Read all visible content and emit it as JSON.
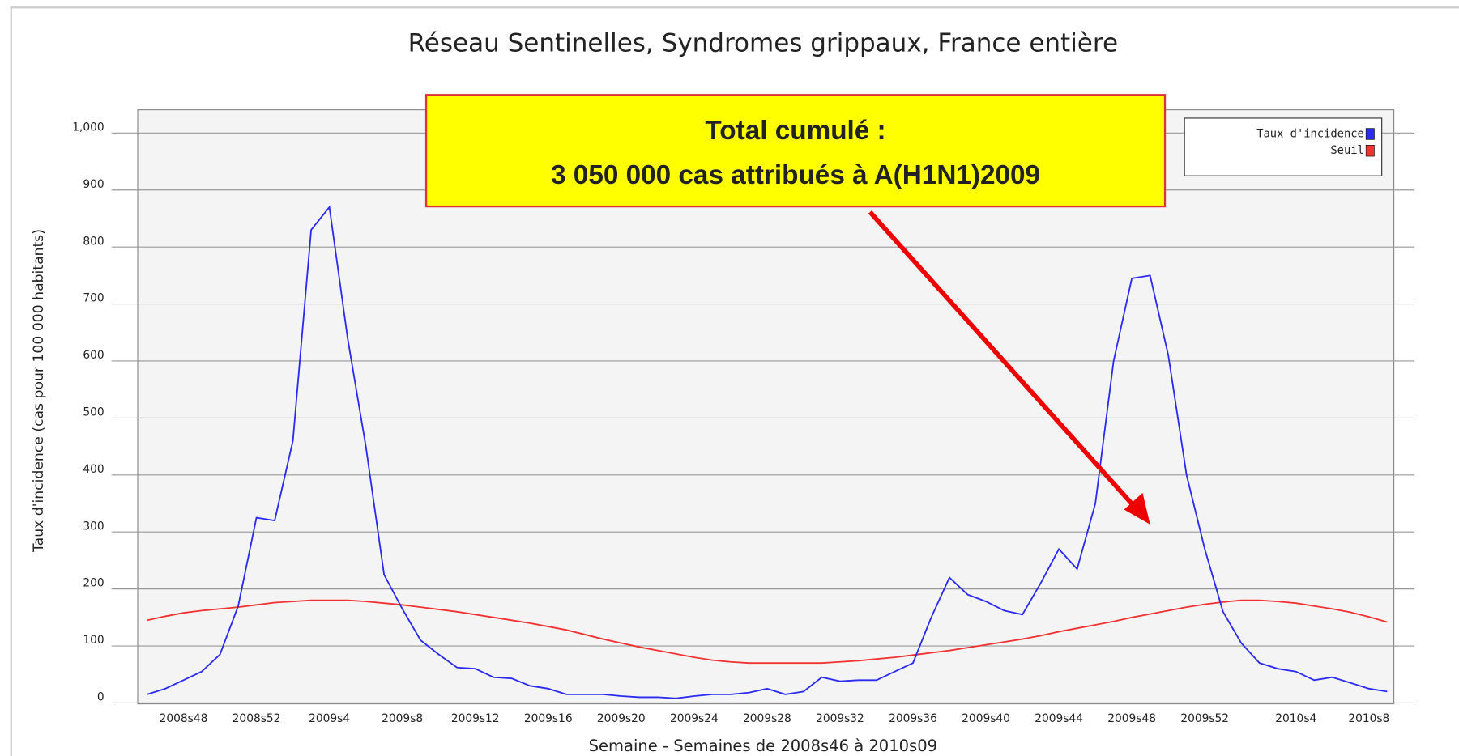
{
  "chart_data": {
    "type": "line",
    "title": "Réseau Sentinelles, Syndromes grippaux, France entière",
    "x_label": "Semaine - Semaines de 2008s46 à 2010s09",
    "y_label": "Taux d'incidence (cas pour 100 000 habitants)",
    "annotation": [
      "Total cumulé :",
      "3 050 000 cas attribués à A(H1N1)2009"
    ],
    "categories": [
      null,
      null,
      "2008s48",
      null,
      null,
      null,
      "2008s52",
      null,
      null,
      null,
      "2009s4",
      null,
      null,
      null,
      "2009s8",
      null,
      null,
      null,
      "2009s12",
      null,
      null,
      null,
      "2009s16",
      null,
      null,
      null,
      "2009s20",
      null,
      null,
      null,
      "2009s24",
      null,
      null,
      null,
      "2009s28",
      null,
      null,
      null,
      "2009s32",
      null,
      null,
      null,
      "2009s36",
      null,
      null,
      null,
      "2009s40",
      null,
      null,
      null,
      "2009s44",
      null,
      null,
      null,
      "2009s48",
      null,
      null,
      null,
      "2009s52",
      null,
      null,
      null,
      null,
      "2010s4",
      null,
      null,
      null,
      "2010s8",
      null
    ],
    "series": [
      {
        "name": "Taux d'incidence",
        "color": "#2b2bf0",
        "values": [
          15,
          25,
          40,
          55,
          85,
          170,
          325,
          320,
          460,
          830,
          870,
          640,
          450,
          225,
          165,
          110,
          85,
          62,
          60,
          45,
          43,
          30,
          25,
          15,
          15,
          15,
          12,
          10,
          10,
          8,
          12,
          15,
          15,
          18,
          25,
          15,
          20,
          45,
          38,
          40,
          40,
          55,
          70,
          150,
          220,
          190,
          178,
          162,
          155,
          210,
          270,
          235,
          350,
          600,
          745,
          750,
          610,
          400,
          270,
          160,
          105,
          70,
          60,
          55,
          40,
          45,
          35,
          25,
          20
        ]
      },
      {
        "name": "Seuil",
        "color": "#f03232",
        "values": [
          145,
          152,
          158,
          162,
          165,
          168,
          172,
          176,
          178,
          180,
          180,
          180,
          178,
          175,
          172,
          168,
          164,
          160,
          155,
          150,
          145,
          140,
          134,
          128,
          120,
          112,
          105,
          98,
          92,
          86,
          80,
          75,
          72,
          70,
          70,
          70,
          70,
          70,
          72,
          74,
          77,
          80,
          84,
          88,
          92,
          97,
          102,
          107,
          112,
          118,
          125,
          131,
          137,
          143,
          150,
          156,
          162,
          168,
          173,
          177,
          180,
          180,
          178,
          175,
          170,
          165,
          159,
          151,
          142
        ]
      }
    ],
    "ylim": [
      0,
      1000
    ],
    "yticks": [
      0,
      100,
      200,
      300,
      400,
      500,
      600,
      700,
      800,
      900,
      {
        "value": 1000,
        "label": "1,000"
      }
    ],
    "grid": true,
    "legend": "upper right"
  }
}
